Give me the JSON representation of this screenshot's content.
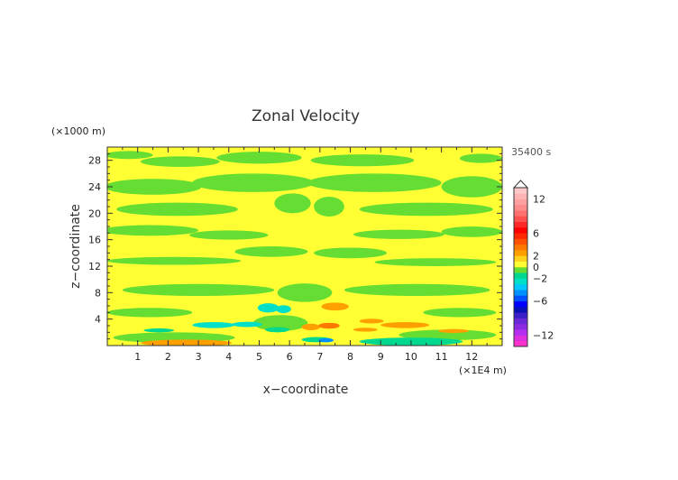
{
  "chart_data": {
    "type": "heatmap",
    "title": "Zonal Velocity",
    "xlabel": "x−coordinate",
    "ylabel": "z−coordinate",
    "x_unit": "(×1E4 m)",
    "y_unit": "(×1000 m)",
    "time_label": "35400 s",
    "xlim": [
      0,
      13
    ],
    "ylim": [
      0,
      30
    ],
    "x_ticks": [
      1,
      2,
      3,
      4,
      5,
      6,
      7,
      8,
      9,
      10,
      11,
      12
    ],
    "y_ticks": [
      4,
      8,
      12,
      16,
      20,
      24,
      28
    ],
    "colorbar": {
      "levels": [
        -14,
        -13,
        -12,
        -11,
        -10,
        -9,
        -8,
        -7,
        -6,
        -5,
        -4,
        -3,
        -2,
        -1,
        0,
        1,
        2,
        3,
        4,
        5,
        6,
        7,
        8,
        9,
        10,
        11,
        12,
        13,
        14
      ],
      "colors": [
        "#ff33cc",
        "#dd2fe0",
        "#b32ef0",
        "#8a2be2",
        "#6a28d8",
        "#3a1ec8",
        "#0a10b8",
        "#0000ff",
        "#0050ff",
        "#0090ff",
        "#00c8ff",
        "#00e0c8",
        "#00d890",
        "#66dd33",
        "#ffff33",
        "#ffd21e",
        "#ffa000",
        "#ff7800",
        "#ff5000",
        "#ff2800",
        "#ff0000",
        "#ff2828",
        "#ff5050",
        "#ff7070",
        "#ff8c8c",
        "#ffa0a0",
        "#ffb4b4",
        "#ffc8c8"
      ],
      "tick_labels": [
        "12",
        "6",
        "2",
        "0",
        "−2",
        "−6",
        "−12"
      ],
      "tick_values": [
        12,
        6,
        2,
        0,
        -2,
        -6,
        -12
      ],
      "extend": "max"
    },
    "regions": [
      {
        "cx": 0.7,
        "cy": 28.8,
        "rx": 0.8,
        "ry": 0.6,
        "value": -0.5
      },
      {
        "cx": 2.4,
        "cy": 27.8,
        "rx": 1.3,
        "ry": 0.8,
        "value": -0.5
      },
      {
        "cx": 5.0,
        "cy": 28.4,
        "rx": 1.4,
        "ry": 0.9,
        "value": -0.5
      },
      {
        "cx": 8.4,
        "cy": 28.0,
        "rx": 1.7,
        "ry": 0.9,
        "value": -0.5
      },
      {
        "cx": 12.3,
        "cy": 28.3,
        "rx": 0.7,
        "ry": 0.7,
        "value": -0.5
      },
      {
        "cx": 1.5,
        "cy": 24.0,
        "rx": 1.6,
        "ry": 1.2,
        "value": -0.5
      },
      {
        "cx": 4.8,
        "cy": 24.6,
        "rx": 2.0,
        "ry": 1.4,
        "value": -0.5
      },
      {
        "cx": 8.8,
        "cy": 24.6,
        "rx": 2.2,
        "ry": 1.4,
        "value": -0.5
      },
      {
        "cx": 12.0,
        "cy": 24.0,
        "rx": 1.0,
        "ry": 1.6,
        "value": -0.5
      },
      {
        "cx": 2.3,
        "cy": 20.6,
        "rx": 2.0,
        "ry": 1.0,
        "value": -0.5
      },
      {
        "cx": 10.5,
        "cy": 20.6,
        "rx": 2.2,
        "ry": 1.0,
        "value": -0.5
      },
      {
        "cx": 6.1,
        "cy": 21.5,
        "rx": 0.6,
        "ry": 1.5,
        "value": -0.5
      },
      {
        "cx": 7.3,
        "cy": 21.0,
        "rx": 0.5,
        "ry": 1.5,
        "value": -0.5
      },
      {
        "cx": 1.4,
        "cy": 17.4,
        "rx": 1.6,
        "ry": 0.8,
        "value": -0.5
      },
      {
        "cx": 4.0,
        "cy": 16.7,
        "rx": 1.3,
        "ry": 0.7,
        "value": -0.5
      },
      {
        "cx": 9.6,
        "cy": 16.8,
        "rx": 1.5,
        "ry": 0.7,
        "value": -0.5
      },
      {
        "cx": 12.0,
        "cy": 17.2,
        "rx": 1.0,
        "ry": 0.8,
        "value": -0.5
      },
      {
        "cx": 5.4,
        "cy": 14.2,
        "rx": 1.2,
        "ry": 0.8,
        "value": -0.5
      },
      {
        "cx": 8.0,
        "cy": 14.0,
        "rx": 1.2,
        "ry": 0.8,
        "value": -0.5
      },
      {
        "cx": 2.2,
        "cy": 12.8,
        "rx": 2.2,
        "ry": 0.6,
        "value": -0.5
      },
      {
        "cx": 10.8,
        "cy": 12.6,
        "rx": 2.0,
        "ry": 0.6,
        "value": -0.5
      },
      {
        "cx": 3.0,
        "cy": 8.4,
        "rx": 2.5,
        "ry": 0.9,
        "value": -0.5
      },
      {
        "cx": 10.2,
        "cy": 8.4,
        "rx": 2.4,
        "ry": 0.9,
        "value": -0.5
      },
      {
        "cx": 6.5,
        "cy": 8.0,
        "rx": 0.9,
        "ry": 1.4,
        "value": -0.5
      },
      {
        "cx": 1.4,
        "cy": 5.0,
        "rx": 1.4,
        "ry": 0.7,
        "value": -0.5
      },
      {
        "cx": 11.6,
        "cy": 5.0,
        "rx": 1.2,
        "ry": 0.7,
        "value": -0.5
      },
      {
        "cx": 2.2,
        "cy": 1.2,
        "rx": 2.0,
        "ry": 0.8,
        "value": -0.5
      },
      {
        "cx": 11.2,
        "cy": 1.6,
        "rx": 1.6,
        "ry": 0.8,
        "value": -0.5
      },
      {
        "cx": 5.7,
        "cy": 3.4,
        "rx": 0.9,
        "ry": 1.2,
        "value": -0.5
      },
      {
        "cx": 5.3,
        "cy": 5.7,
        "rx": 0.35,
        "ry": 0.7,
        "value": -2.5
      },
      {
        "cx": 5.8,
        "cy": 5.5,
        "rx": 0.25,
        "ry": 0.6,
        "value": -2.5
      },
      {
        "cx": 3.5,
        "cy": 3.1,
        "rx": 0.7,
        "ry": 0.45,
        "value": -2.5
      },
      {
        "cx": 4.6,
        "cy": 3.2,
        "rx": 0.5,
        "ry": 0.4,
        "value": -2.5
      },
      {
        "cx": 1.7,
        "cy": 2.3,
        "rx": 0.5,
        "ry": 0.3,
        "value": -1.5
      },
      {
        "cx": 5.6,
        "cy": 2.4,
        "rx": 0.4,
        "ry": 0.4,
        "value": -1.5
      },
      {
        "cx": 6.9,
        "cy": 0.9,
        "rx": 0.5,
        "ry": 0.4,
        "value": -1.5
      },
      {
        "cx": 10.0,
        "cy": 0.6,
        "rx": 1.7,
        "ry": 0.6,
        "value": -1.5
      },
      {
        "cx": 7.2,
        "cy": 0.8,
        "rx": 0.25,
        "ry": 0.3,
        "value": -4.5
      },
      {
        "cx": 2.6,
        "cy": 0.4,
        "rx": 1.5,
        "ry": 0.5,
        "value": 2.5
      },
      {
        "cx": 7.5,
        "cy": 5.9,
        "rx": 0.45,
        "ry": 0.6,
        "value": 2.5
      },
      {
        "cx": 8.7,
        "cy": 3.7,
        "rx": 0.4,
        "ry": 0.35,
        "value": 2.5
      },
      {
        "cx": 9.8,
        "cy": 3.1,
        "rx": 0.8,
        "ry": 0.45,
        "value": 2.5
      },
      {
        "cx": 8.5,
        "cy": 2.4,
        "rx": 0.4,
        "ry": 0.3,
        "value": 2.5
      },
      {
        "cx": 6.7,
        "cy": 2.8,
        "rx": 0.3,
        "ry": 0.5,
        "value": 2.5
      },
      {
        "cx": 11.4,
        "cy": 2.2,
        "rx": 0.5,
        "ry": 0.3,
        "value": 2.5
      },
      {
        "cx": 7.3,
        "cy": 3.0,
        "rx": 0.35,
        "ry": 0.45,
        "value": 3.5
      }
    ]
  }
}
